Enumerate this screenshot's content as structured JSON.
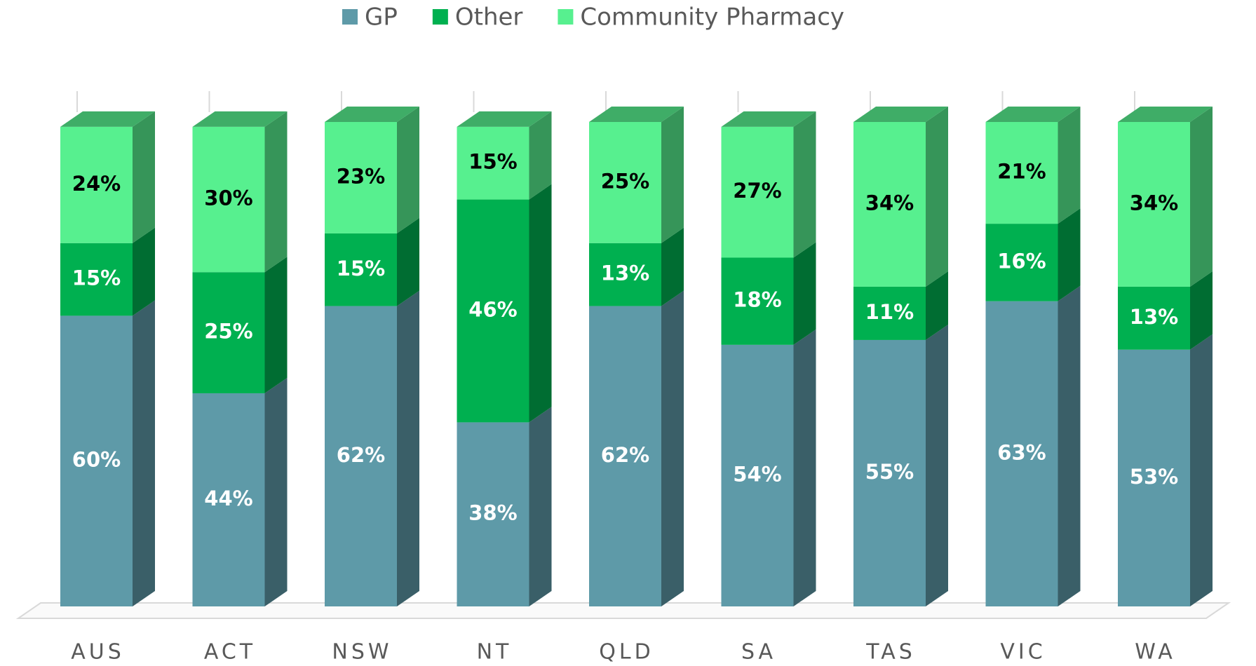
{
  "chart_data": {
    "type": "bar",
    "stacked": true,
    "categories": [
      "AUS",
      "ACT",
      "NSW",
      "NT",
      "QLD",
      "SA",
      "TAS",
      "VIC",
      "WA"
    ],
    "series": [
      {
        "name": "GP",
        "color": "#5e9aa8",
        "values": [
          60,
          44,
          62,
          38,
          62,
          54,
          55,
          63,
          53
        ],
        "value_labels": [
          "60%",
          "44%",
          "62%",
          "38%",
          "62%",
          "54%",
          "55%",
          "63%",
          "53%"
        ]
      },
      {
        "name": "Other",
        "color": "#00b050",
        "values": [
          15,
          25,
          15,
          46,
          13,
          18,
          11,
          16,
          13
        ],
        "value_labels": [
          "15%",
          "25%",
          "15%",
          "46%",
          "13%",
          "18%",
          "11%",
          "16%",
          "13%"
        ]
      },
      {
        "name": "Community Pharmacy",
        "color": "#57f08f",
        "values": [
          24,
          30,
          23,
          15,
          25,
          27,
          34,
          21,
          34
        ],
        "value_labels": [
          "24%",
          "30%",
          "23%",
          "15%",
          "25%",
          "27%",
          "34%",
          "21%",
          "34%"
        ]
      }
    ],
    "ylim": [
      0,
      100
    ],
    "legend": "top"
  }
}
